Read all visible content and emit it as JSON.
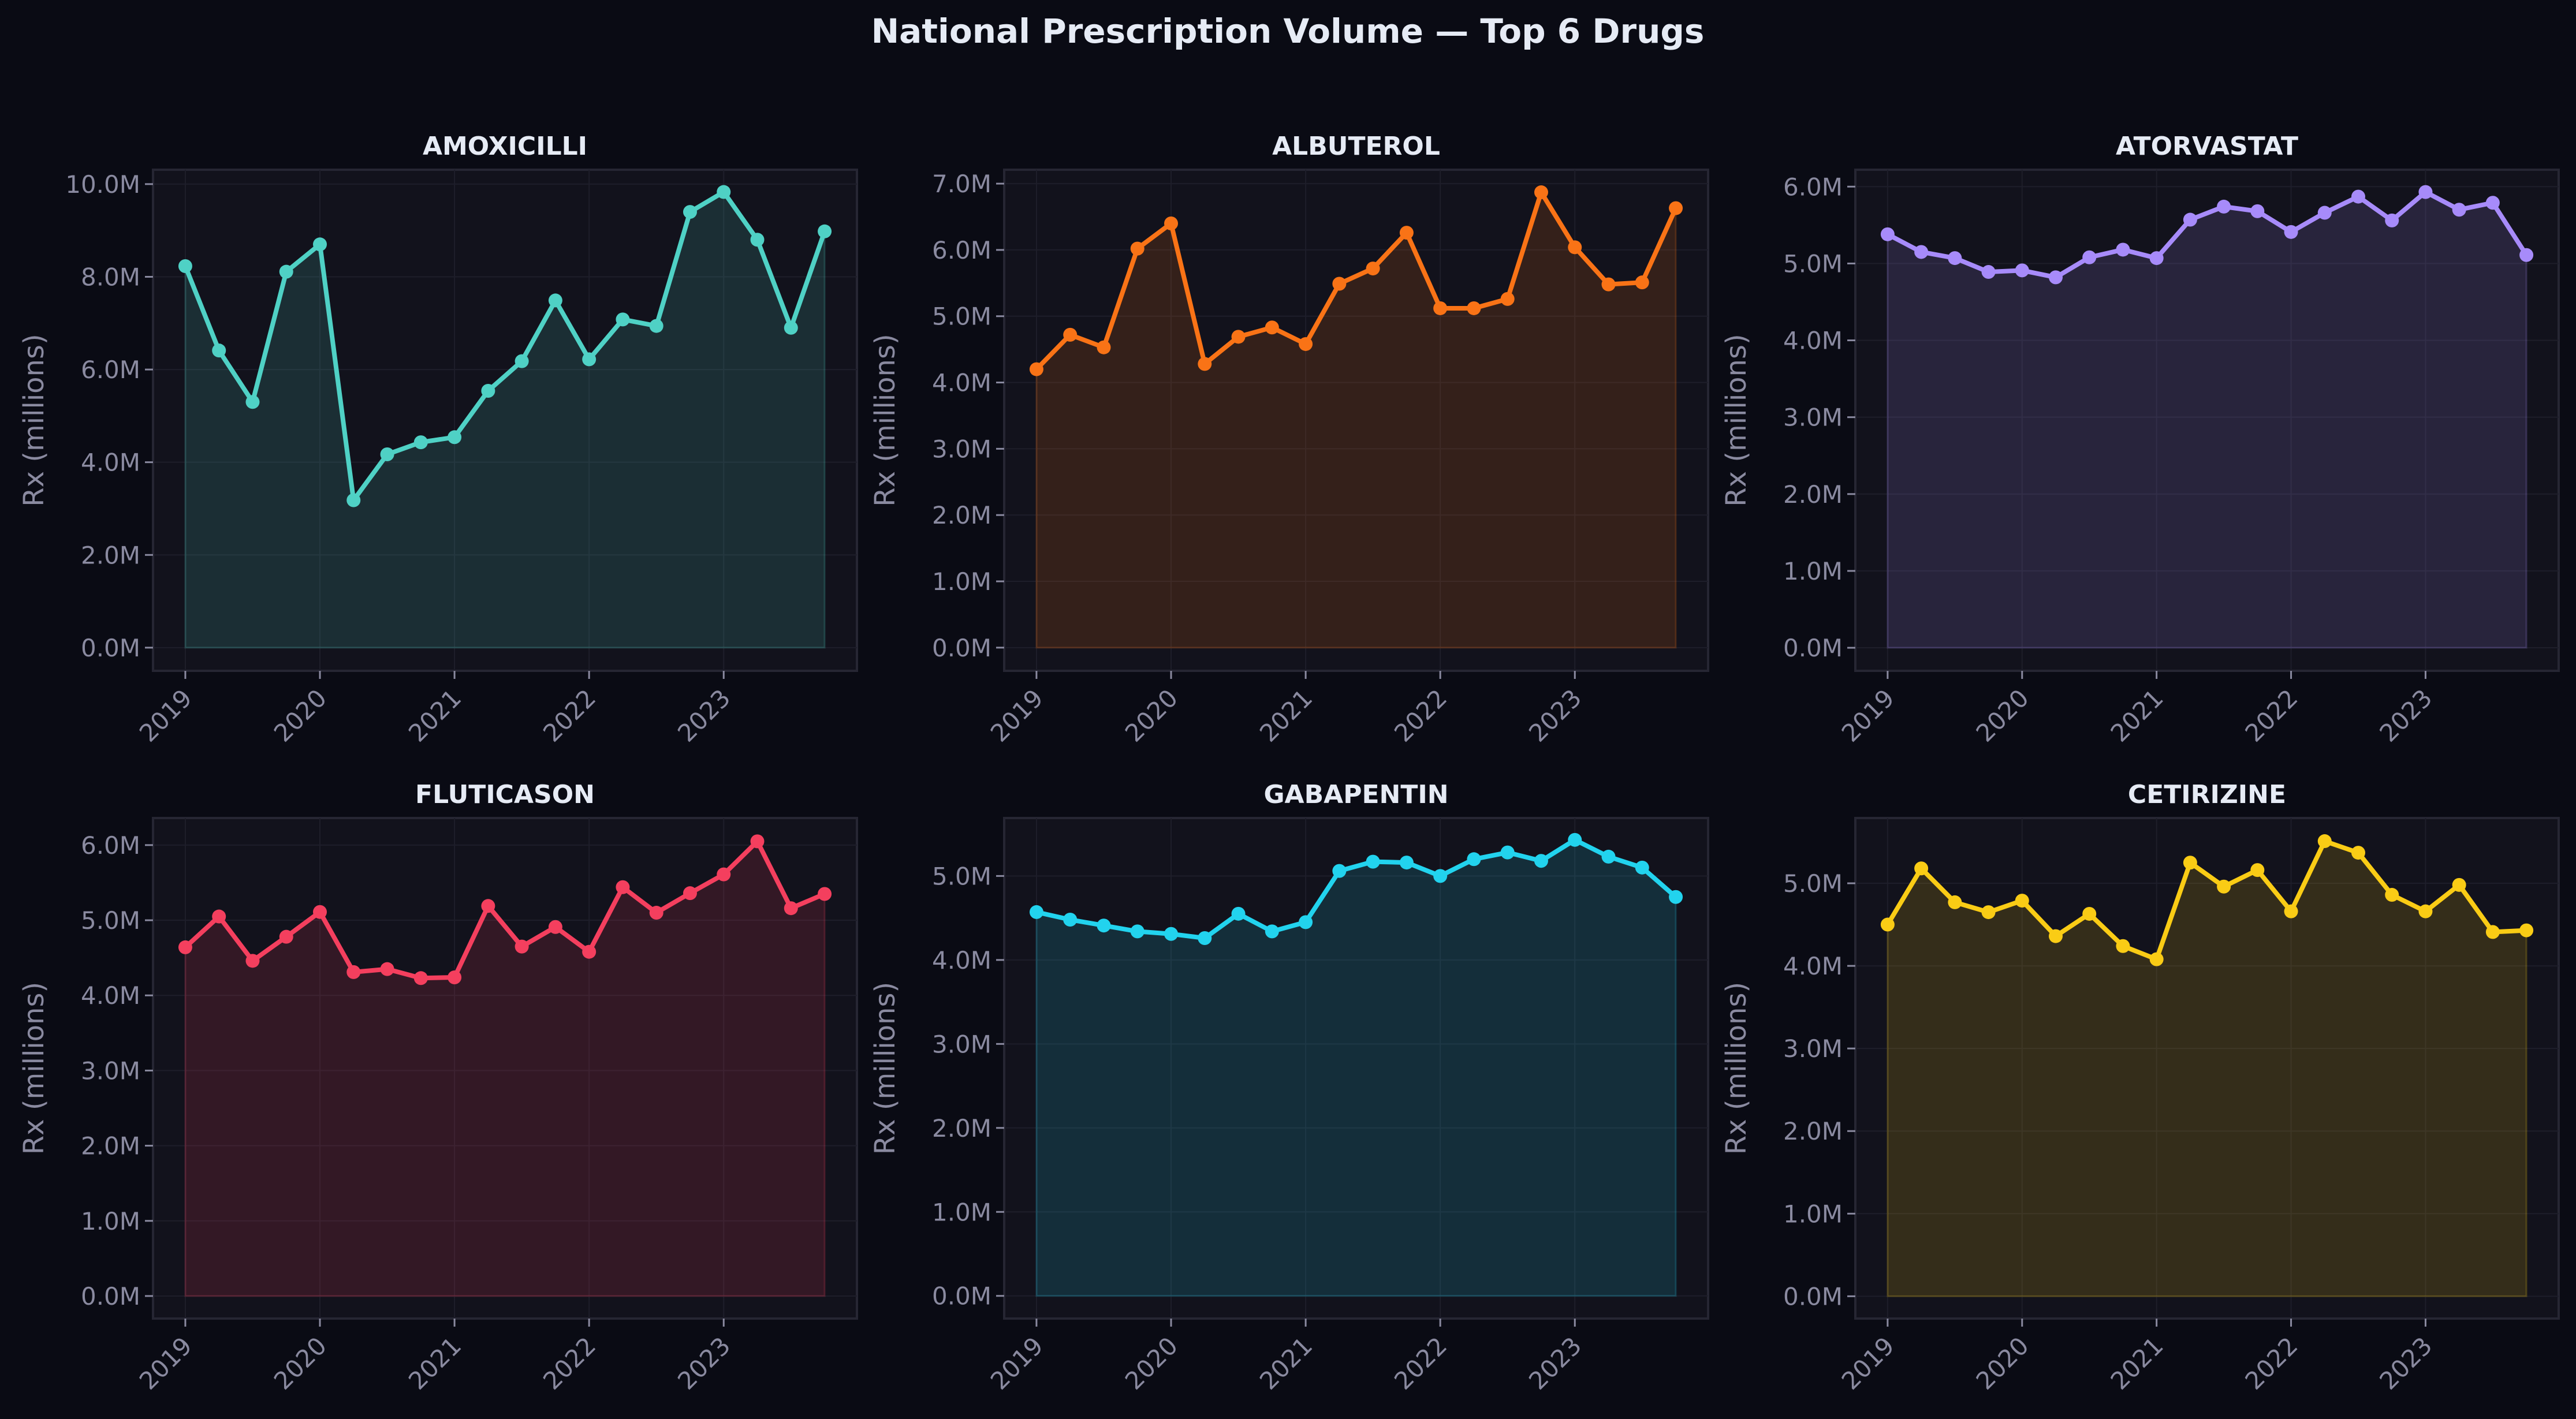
{
  "title": "National Prescription Volume — Top 6 Drugs",
  "chart_data": [
    {
      "type": "line",
      "title": "AMOXICILLI",
      "ylabel": "Rx (millions)",
      "color": "#4fd1c5",
      "ylim": [
        -0.5,
        10.31
      ],
      "yticks": [
        0,
        2,
        4,
        6,
        8,
        10
      ],
      "xticks": [
        2019,
        2020,
        2021,
        2022,
        2023
      ],
      "xlim": [
        2018.76,
        2023.99
      ],
      "area_fill": true,
      "grid": true,
      "x": [
        "2019-Q1",
        "2019-Q2",
        "2019-Q3",
        "2019-Q4",
        "2020-Q1",
        "2020-Q2",
        "2020-Q3",
        "2020-Q4",
        "2021-Q1",
        "2021-Q2",
        "2021-Q3",
        "2021-Q4",
        "2022-Q1",
        "2022-Q2",
        "2022-Q3",
        "2022-Q4",
        "2023-Q1",
        "2023-Q2",
        "2023-Q3",
        "2023-Q4"
      ],
      "values": [
        8.23,
        6.41,
        5.3,
        8.11,
        8.7,
        3.18,
        4.17,
        4.43,
        4.54,
        5.54,
        6.18,
        7.49,
        6.22,
        7.08,
        6.94,
        9.4,
        9.83,
        8.8,
        6.9,
        8.98
      ]
    },
    {
      "type": "line",
      "title": "ALBUTEROL",
      "ylabel": "Rx (millions)",
      "color": "#f97316",
      "ylim": [
        -0.35,
        7.21
      ],
      "yticks": [
        0,
        1,
        2,
        3,
        4,
        5,
        6,
        7
      ],
      "xticks": [
        2019,
        2020,
        2021,
        2022,
        2023
      ],
      "xlim": [
        2018.76,
        2023.99
      ],
      "area_fill": true,
      "grid": true,
      "x": [
        "2019-Q1",
        "2019-Q2",
        "2019-Q3",
        "2019-Q4",
        "2020-Q1",
        "2020-Q2",
        "2020-Q3",
        "2020-Q4",
        "2021-Q1",
        "2021-Q2",
        "2021-Q3",
        "2021-Q4",
        "2022-Q1",
        "2022-Q2",
        "2022-Q3",
        "2022-Q4",
        "2023-Q1",
        "2023-Q2",
        "2023-Q3",
        "2023-Q4"
      ],
      "values": [
        4.2,
        4.72,
        4.53,
        6.02,
        6.4,
        4.28,
        4.69,
        4.83,
        4.58,
        5.49,
        5.72,
        6.26,
        5.12,
        5.12,
        5.26,
        6.87,
        6.04,
        5.48,
        5.51,
        6.63
      ]
    },
    {
      "type": "line",
      "title": "ATORVASTAT",
      "ylabel": "Rx (millions)",
      "color": "#a78bfa",
      "ylim": [
        -0.3,
        6.22
      ],
      "yticks": [
        0,
        1,
        2,
        3,
        4,
        5,
        6
      ],
      "xticks": [
        2019,
        2020,
        2021,
        2022,
        2023
      ],
      "xlim": [
        2018.76,
        2023.99
      ],
      "area_fill": true,
      "grid": true,
      "x": [
        "2019-Q1",
        "2019-Q2",
        "2019-Q3",
        "2019-Q4",
        "2020-Q1",
        "2020-Q2",
        "2020-Q3",
        "2020-Q4",
        "2021-Q1",
        "2021-Q2",
        "2021-Q3",
        "2021-Q4",
        "2022-Q1",
        "2022-Q2",
        "2022-Q3",
        "2022-Q4",
        "2023-Q1",
        "2023-Q2",
        "2023-Q3",
        "2023-Q4"
      ],
      "values": [
        5.38,
        5.15,
        5.07,
        4.89,
        4.91,
        4.82,
        5.08,
        5.18,
        5.07,
        5.57,
        5.74,
        5.68,
        5.41,
        5.66,
        5.87,
        5.56,
        5.93,
        5.7,
        5.79,
        5.11
      ]
    },
    {
      "type": "line",
      "title": "FLUTICASON",
      "ylabel": "Rx (millions)",
      "color": "#f43f5e",
      "ylim": [
        -0.3,
        6.36
      ],
      "yticks": [
        0,
        1,
        2,
        3,
        4,
        5,
        6
      ],
      "xticks": [
        2019,
        2020,
        2021,
        2022,
        2023
      ],
      "xlim": [
        2018.76,
        2023.99
      ],
      "area_fill": true,
      "grid": true,
      "x": [
        "2019-Q1",
        "2019-Q2",
        "2019-Q3",
        "2019-Q4",
        "2020-Q1",
        "2020-Q2",
        "2020-Q3",
        "2020-Q4",
        "2021-Q1",
        "2021-Q2",
        "2021-Q3",
        "2021-Q4",
        "2022-Q1",
        "2022-Q2",
        "2022-Q3",
        "2022-Q4",
        "2023-Q1",
        "2023-Q2",
        "2023-Q3",
        "2023-Q4"
      ],
      "values": [
        4.64,
        5.05,
        4.46,
        4.78,
        5.11,
        4.31,
        4.35,
        4.23,
        4.24,
        5.19,
        4.65,
        4.91,
        4.58,
        5.44,
        5.1,
        5.36,
        5.61,
        6.05,
        5.16,
        5.35
      ]
    },
    {
      "type": "line",
      "title": "GABAPENTIN",
      "ylabel": "Rx (millions)",
      "color": "#22d3ee",
      "ylim": [
        -0.27,
        5.69
      ],
      "yticks": [
        0,
        1,
        2,
        3,
        4,
        5
      ],
      "xticks": [
        2019,
        2020,
        2021,
        2022,
        2023
      ],
      "xlim": [
        2018.76,
        2023.99
      ],
      "area_fill": true,
      "grid": true,
      "x": [
        "2019-Q1",
        "2019-Q2",
        "2019-Q3",
        "2019-Q4",
        "2020-Q1",
        "2020-Q2",
        "2020-Q3",
        "2020-Q4",
        "2021-Q1",
        "2021-Q2",
        "2021-Q3",
        "2021-Q4",
        "2022-Q1",
        "2022-Q2",
        "2022-Q3",
        "2022-Q4",
        "2023-Q1",
        "2023-Q2",
        "2023-Q3",
        "2023-Q4"
      ],
      "values": [
        4.57,
        4.48,
        4.41,
        4.34,
        4.31,
        4.26,
        4.55,
        4.34,
        4.45,
        5.06,
        5.17,
        5.16,
        5.0,
        5.2,
        5.28,
        5.18,
        5.43,
        5.23,
        5.1,
        4.75
      ]
    },
    {
      "type": "line",
      "title": "CETIRIZINE",
      "ylabel": "Rx (millions)",
      "color": "#facc15",
      "ylim": [
        -0.27,
        5.79
      ],
      "yticks": [
        0,
        1,
        2,
        3,
        4,
        5
      ],
      "xticks": [
        2019,
        2020,
        2021,
        2022,
        2023
      ],
      "xlim": [
        2018.76,
        2023.99
      ],
      "area_fill": true,
      "grid": true,
      "x": [
        "2019-Q1",
        "2019-Q2",
        "2019-Q3",
        "2019-Q4",
        "2020-Q1",
        "2020-Q2",
        "2020-Q3",
        "2020-Q4",
        "2021-Q1",
        "2021-Q2",
        "2021-Q3",
        "2021-Q4",
        "2022-Q1",
        "2022-Q2",
        "2022-Q3",
        "2022-Q4",
        "2023-Q1",
        "2023-Q2",
        "2023-Q3",
        "2023-Q4"
      ],
      "values": [
        4.5,
        5.18,
        4.77,
        4.65,
        4.79,
        4.36,
        4.63,
        4.24,
        4.08,
        5.25,
        4.96,
        5.16,
        4.66,
        5.51,
        5.37,
        4.86,
        4.66,
        4.98,
        4.41,
        4.43
      ]
    }
  ]
}
